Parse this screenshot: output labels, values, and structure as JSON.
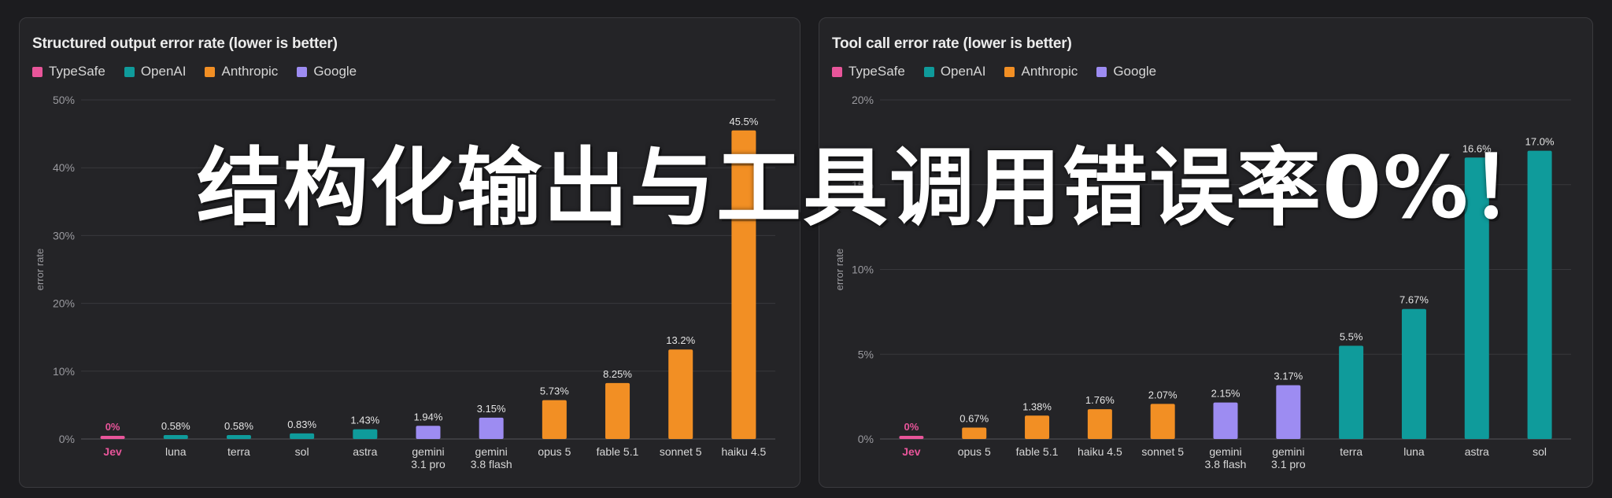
{
  "headline": "结构化输出与工具调用错误率0%！",
  "colors": {
    "TypeSafe": "#e8559a",
    "OpenAI": "#0f9b9b",
    "Anthropic": "#f28f24",
    "Google": "#9d8cf2"
  },
  "chart_data": [
    {
      "type": "bar",
      "title": "Structured output error rate (lower is better)",
      "ylabel": "error rate",
      "ylim": [
        0,
        50
      ],
      "yticks": [
        "0%",
        "10%",
        "20%",
        "30%",
        "40%",
        "50%"
      ],
      "legend": [
        "TypeSafe",
        "OpenAI",
        "Anthropic",
        "Google"
      ],
      "legend_position": "top-left",
      "grid": true,
      "bars": [
        {
          "category": [
            "Jev"
          ],
          "value": 0,
          "label": "0%",
          "group": "TypeSafe"
        },
        {
          "category": [
            "luna"
          ],
          "value": 0.58,
          "label": "0.58%",
          "group": "OpenAI"
        },
        {
          "category": [
            "terra"
          ],
          "value": 0.58,
          "label": "0.58%",
          "group": "OpenAI"
        },
        {
          "category": [
            "sol"
          ],
          "value": 0.83,
          "label": "0.83%",
          "group": "OpenAI"
        },
        {
          "category": [
            "astra"
          ],
          "value": 1.43,
          "label": "1.43%",
          "group": "OpenAI"
        },
        {
          "category": [
            "gemini",
            "3.1 pro"
          ],
          "value": 1.94,
          "label": "1.94%",
          "group": "Google"
        },
        {
          "category": [
            "gemini",
            "3.8 flash"
          ],
          "value": 3.15,
          "label": "3.15%",
          "group": "Google"
        },
        {
          "category": [
            "opus 5"
          ],
          "value": 5.73,
          "label": "5.73%",
          "group": "Anthropic"
        },
        {
          "category": [
            "fable 5.1"
          ],
          "value": 8.25,
          "label": "8.25%",
          "group": "Anthropic"
        },
        {
          "category": [
            "sonnet 5"
          ],
          "value": 13.2,
          "label": "13.2%",
          "group": "Anthropic"
        },
        {
          "category": [
            "haiku 4.5"
          ],
          "value": 45.5,
          "label": "45.5%",
          "group": "Anthropic"
        }
      ]
    },
    {
      "type": "bar",
      "title": "Tool call error rate (lower is better)",
      "ylabel": "error rate",
      "ylim": [
        0,
        20
      ],
      "yticks": [
        "0%",
        "5%",
        "10%",
        "15%",
        "20%"
      ],
      "legend": [
        "TypeSafe",
        "OpenAI",
        "Anthropic",
        "Google"
      ],
      "legend_position": "top-left",
      "grid": true,
      "bars": [
        {
          "category": [
            "Jev"
          ],
          "value": 0,
          "label": "0%",
          "group": "TypeSafe"
        },
        {
          "category": [
            "opus 5"
          ],
          "value": 0.67,
          "label": "0.67%",
          "group": "Anthropic"
        },
        {
          "category": [
            "fable 5.1"
          ],
          "value": 1.38,
          "label": "1.38%",
          "group": "Anthropic"
        },
        {
          "category": [
            "haiku 4.5"
          ],
          "value": 1.76,
          "label": "1.76%",
          "group": "Anthropic"
        },
        {
          "category": [
            "sonnet 5"
          ],
          "value": 2.07,
          "label": "2.07%",
          "group": "Anthropic"
        },
        {
          "category": [
            "gemini",
            "3.8 flash"
          ],
          "value": 2.15,
          "label": "2.15%",
          "group": "Google"
        },
        {
          "category": [
            "gemini",
            "3.1 pro"
          ],
          "value": 3.17,
          "label": "3.17%",
          "group": "Google"
        },
        {
          "category": [
            "terra"
          ],
          "value": 5.5,
          "label": "5.5%",
          "group": "OpenAI"
        },
        {
          "category": [
            "luna"
          ],
          "value": 7.67,
          "label": "7.67%",
          "group": "OpenAI"
        },
        {
          "category": [
            "astra"
          ],
          "value": 16.6,
          "label": "16.6%",
          "group": "OpenAI"
        },
        {
          "category": [
            "sol"
          ],
          "value": 17.0,
          "label": "17.0%",
          "group": "OpenAI"
        }
      ]
    }
  ]
}
